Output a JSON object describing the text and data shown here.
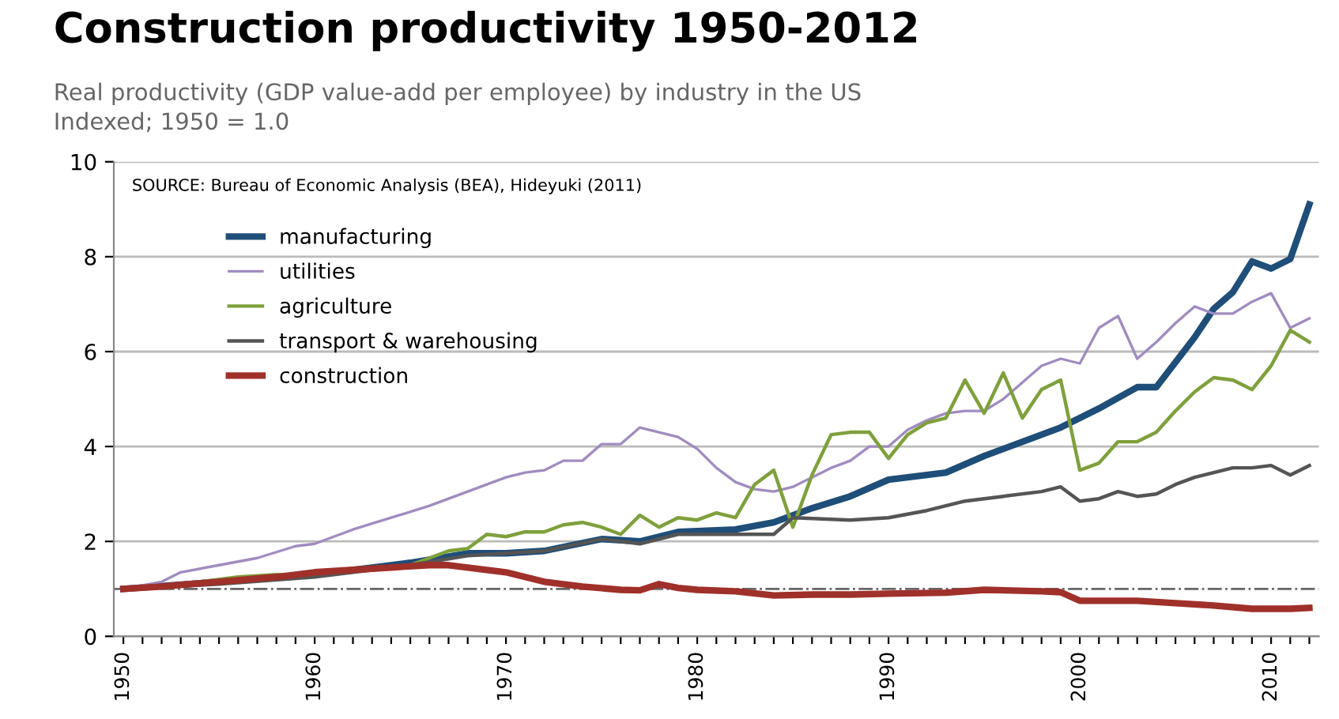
{
  "chart_data": {
    "type": "line",
    "title": "Construction productivity 1950-2012",
    "subtitle": "Real productivity (GDP value-add per employee) by industry in the US\nIndexed; 1950 = 1.0",
    "annotations": [
      "SOURCE: Bureau of Economic Analysis (BEA), Hideyuki (2011)"
    ],
    "series": [
      {
        "name": "manufacturing",
        "color": "#1f4e79",
        "x": [
          1950,
          1955,
          1960,
          1965,
          1968,
          1970,
          1972,
          1975,
          1977,
          1979,
          1982,
          1984,
          1986,
          1988,
          1990,
          1993,
          1995,
          1997,
          1999,
          2001,
          2003,
          2004,
          2006,
          2007,
          2008,
          2009,
          2010,
          2011,
          2012
        ],
        "values": [
          1.0,
          1.15,
          1.3,
          1.55,
          1.75,
          1.75,
          1.8,
          2.05,
          2.0,
          2.2,
          2.25,
          2.4,
          2.7,
          2.95,
          3.3,
          3.45,
          3.8,
          4.1,
          4.4,
          4.8,
          5.25,
          5.25,
          6.3,
          6.9,
          7.25,
          7.9,
          7.75,
          7.95,
          9.1
        ]
      },
      {
        "name": "utilities",
        "color": "#a08cc0",
        "x": [
          1950,
          1952,
          1953,
          1955,
          1957,
          1959,
          1960,
          1962,
          1964,
          1966,
          1968,
          1970,
          1971,
          1972,
          1973,
          1974,
          1975,
          1976,
          1977,
          1978,
          1979,
          1980,
          1981,
          1982,
          1983,
          1984,
          1985,
          1986,
          1987,
          1988,
          1989,
          1990,
          1991,
          1992,
          1993,
          1994,
          1995,
          1996,
          1997,
          1998,
          1999,
          2000,
          2001,
          2002,
          2003,
          2004,
          2005,
          2006,
          2007,
          2008,
          2009,
          2010,
          2011,
          2012
        ],
        "values": [
          1.0,
          1.15,
          1.35,
          1.5,
          1.65,
          1.9,
          1.95,
          2.25,
          2.5,
          2.75,
          3.05,
          3.35,
          3.45,
          3.5,
          3.7,
          3.7,
          4.05,
          4.05,
          4.4,
          4.3,
          4.2,
          3.95,
          3.55,
          3.25,
          3.1,
          3.05,
          3.15,
          3.35,
          3.55,
          3.7,
          4.0,
          4.0,
          4.35,
          4.55,
          4.7,
          4.75,
          4.75,
          5.0,
          5.35,
          5.7,
          5.85,
          5.75,
          6.5,
          6.75,
          5.85,
          6.2,
          6.6,
          6.95,
          6.8,
          6.8,
          7.05,
          7.23,
          6.5,
          6.7
        ]
      },
      {
        "name": "agriculture",
        "color": "#7fa03c",
        "x": [
          1950,
          1953,
          1956,
          1958,
          1960,
          1963,
          1965,
          1967,
          1968,
          1969,
          1970,
          1971,
          1972,
          1973,
          1974,
          1975,
          1976,
          1977,
          1978,
          1979,
          1980,
          1981,
          1982,
          1983,
          1984,
          1985,
          1986,
          1987,
          1988,
          1989,
          1990,
          1991,
          1992,
          1993,
          1994,
          1995,
          1996,
          1997,
          1998,
          1999,
          2000,
          2001,
          2002,
          2003,
          2004,
          2005,
          2006,
          2007,
          2008,
          2009,
          2010,
          2011,
          2012
        ],
        "values": [
          1.0,
          1.1,
          1.25,
          1.3,
          1.3,
          1.4,
          1.5,
          1.8,
          1.85,
          2.15,
          2.1,
          2.2,
          2.2,
          2.35,
          2.4,
          2.3,
          2.15,
          2.55,
          2.3,
          2.5,
          2.45,
          2.6,
          2.5,
          3.2,
          3.5,
          2.3,
          3.4,
          4.25,
          4.3,
          4.3,
          3.75,
          4.25,
          4.5,
          4.6,
          5.4,
          4.7,
          5.55,
          4.6,
          5.2,
          5.4,
          3.5,
          3.65,
          4.1,
          4.1,
          4.3,
          4.75,
          5.15,
          5.45,
          5.4,
          5.2,
          5.7,
          6.45,
          6.2
        ]
      },
      {
        "name": "transport & warehousing",
        "color": "#555555",
        "x": [
          1950,
          1955,
          1960,
          1965,
          1968,
          1970,
          1972,
          1975,
          1977,
          1979,
          1981,
          1984,
          1985,
          1988,
          1990,
          1992,
          1994,
          1996,
          1998,
          1999,
          2000,
          2001,
          2002,
          2003,
          2004,
          2005,
          2006,
          2007,
          2008,
          2009,
          2010,
          2011,
          2012
        ],
        "values": [
          1.0,
          1.1,
          1.25,
          1.5,
          1.7,
          1.75,
          1.8,
          2.05,
          1.95,
          2.15,
          2.15,
          2.15,
          2.5,
          2.45,
          2.5,
          2.65,
          2.85,
          2.95,
          3.05,
          3.15,
          2.85,
          2.9,
          3.05,
          2.95,
          3.0,
          3.2,
          3.35,
          3.45,
          3.55,
          3.55,
          3.6,
          3.4,
          3.6
        ]
      },
      {
        "name": "construction",
        "color": "#a0302a",
        "x": [
          1950,
          1952,
          1955,
          1958,
          1960,
          1962,
          1964,
          1966,
          1967,
          1969,
          1970,
          1972,
          1974,
          1976,
          1977,
          1978,
          1979,
          1980,
          1982,
          1984,
          1986,
          1988,
          1990,
          1993,
          1995,
          1998,
          1999,
          2000,
          2003,
          2005,
          2007,
          2009,
          2011,
          2012
        ],
        "values": [
          1.0,
          1.05,
          1.15,
          1.25,
          1.35,
          1.4,
          1.45,
          1.5,
          1.5,
          1.4,
          1.35,
          1.15,
          1.05,
          0.98,
          0.97,
          1.1,
          1.02,
          0.98,
          0.95,
          0.86,
          0.88,
          0.88,
          0.9,
          0.92,
          0.98,
          0.95,
          0.93,
          0.75,
          0.75,
          0.7,
          0.65,
          0.58,
          0.58,
          0.6
        ]
      }
    ],
    "ylim": [
      0,
      10
    ],
    "yticks": [
      0,
      2,
      4,
      6,
      8,
      10
    ],
    "xlim": [
      1949.5,
      2012.5
    ],
    "xticks": [
      1950,
      {
        "value": 1951,
        "label": null
      },
      {
        "value": 1952,
        "label": null
      },
      {
        "value": 1953,
        "label": null
      },
      {
        "value": 1954,
        "label": null
      },
      {
        "value": 1955,
        "label": null
      },
      {
        "value": 1956,
        "label": null
      },
      {
        "value": 1957,
        "label": null
      },
      {
        "value": 1958,
        "label": null
      },
      {
        "value": 1959,
        "label": null
      },
      1960,
      {
        "value": 1961,
        "label": null
      },
      {
        "value": 1962,
        "label": null
      },
      {
        "value": 1963,
        "label": null
      },
      {
        "value": 1964,
        "label": null
      },
      {
        "value": 1965,
        "label": null
      },
      {
        "value": 1966,
        "label": null
      },
      {
        "value": 1967,
        "label": null
      },
      {
        "value": 1968,
        "label": null
      },
      {
        "value": 1969,
        "label": null
      },
      1970,
      {
        "value": 1971,
        "label": null
      },
      {
        "value": 1972,
        "label": null
      },
      {
        "value": 1973,
        "label": null
      },
      {
        "value": 1974,
        "label": null
      },
      {
        "value": 1975,
        "label": null
      },
      {
        "value": 1976,
        "label": null
      },
      {
        "value": 1977,
        "label": null
      },
      {
        "value": 1978,
        "label": null
      },
      {
        "value": 1979,
        "label": null
      },
      1980,
      {
        "value": 1981,
        "label": null
      },
      {
        "value": 1982,
        "label": null
      },
      {
        "value": 1983,
        "label": null
      },
      {
        "value": 1984,
        "label": null
      },
      {
        "value": 1985,
        "label": null
      },
      {
        "value": 1986,
        "label": null
      },
      {
        "value": 1987,
        "label": null
      },
      {
        "value": 1988,
        "label": null
      },
      {
        "value": 1989,
        "label": null
      },
      1990,
      {
        "value": 1991,
        "label": null
      },
      {
        "value": 1992,
        "label": null
      },
      {
        "value": 1993,
        "label": null
      },
      {
        "value": 1994,
        "label": null
      },
      {
        "value": 1995,
        "label": null
      },
      {
        "value": 1996,
        "label": null
      },
      {
        "value": 1997,
        "label": null
      },
      {
        "value": 1998,
        "label": null
      },
      {
        "value": 1999,
        "label": null
      },
      2000,
      {
        "value": 2001,
        "label": null
      },
      {
        "value": 2002,
        "label": null
      },
      {
        "value": 2003,
        "label": null
      },
      {
        "value": 2004,
        "label": null
      },
      {
        "value": 2005,
        "label": null
      },
      {
        "value": 2006,
        "label": null
      },
      {
        "value": 2007,
        "label": null
      },
      {
        "value": 2008,
        "label": null
      },
      {
        "value": 2009,
        "label": null
      },
      2010,
      {
        "value": 2011,
        "label": null
      },
      {
        "value": 2012,
        "label": null
      }
    ],
    "ref_lines": [
      {
        "axis": "y",
        "value": 1,
        "color": "#666666",
        "line_style": "dashdot"
      }
    ],
    "grid": "y",
    "legend": "top left",
    "marker": "none",
    "line_style": "solid"
  }
}
